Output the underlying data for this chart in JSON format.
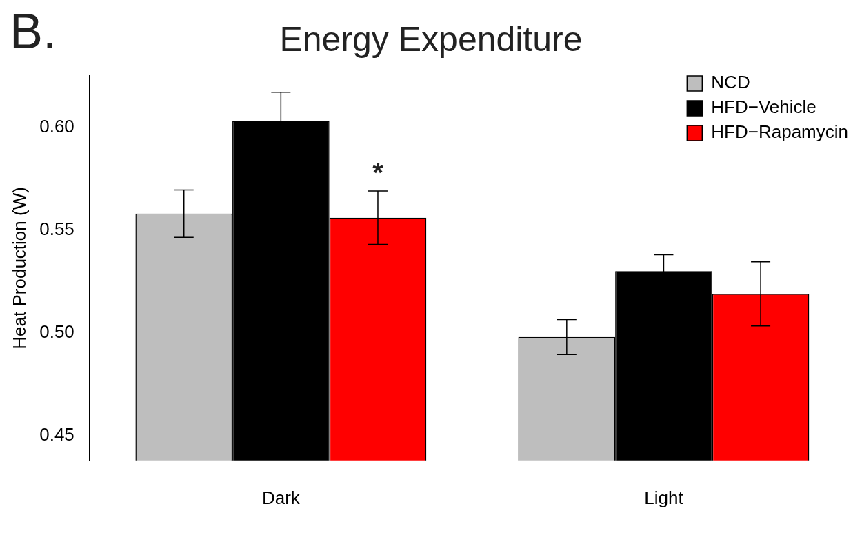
{
  "chart_data": {
    "type": "bar",
    "title": "Energy Expenditure",
    "ylabel": "Heat Production (W)",
    "categories": [
      "Dark",
      "Light"
    ],
    "series": [
      {
        "name": "NCD",
        "color": "#bebebe",
        "values": [
          0.558,
          0.498
        ],
        "errors": [
          0.0115,
          0.0085
        ]
      },
      {
        "name": "HFD−Vehicle",
        "color": "#000000",
        "values": [
          0.603,
          0.53
        ],
        "errors": [
          0.014,
          0.008
        ]
      },
      {
        "name": "HFD−Rapamycin",
        "color": "#ff0000",
        "values": [
          0.556,
          0.519
        ],
        "errors": [
          0.013,
          0.0156
        ]
      }
    ],
    "ylim": [
      0.438,
      0.625
    ],
    "yticks": [
      {
        "value": 0.45,
        "label": "0.45"
      },
      {
        "value": 0.5,
        "label": "0.50"
      },
      {
        "value": 0.55,
        "label": "0.55"
      },
      {
        "value": 0.6,
        "label": "0.60"
      }
    ],
    "grid": false,
    "legend": "top right",
    "annotations": [
      "B.",
      "*"
    ]
  }
}
